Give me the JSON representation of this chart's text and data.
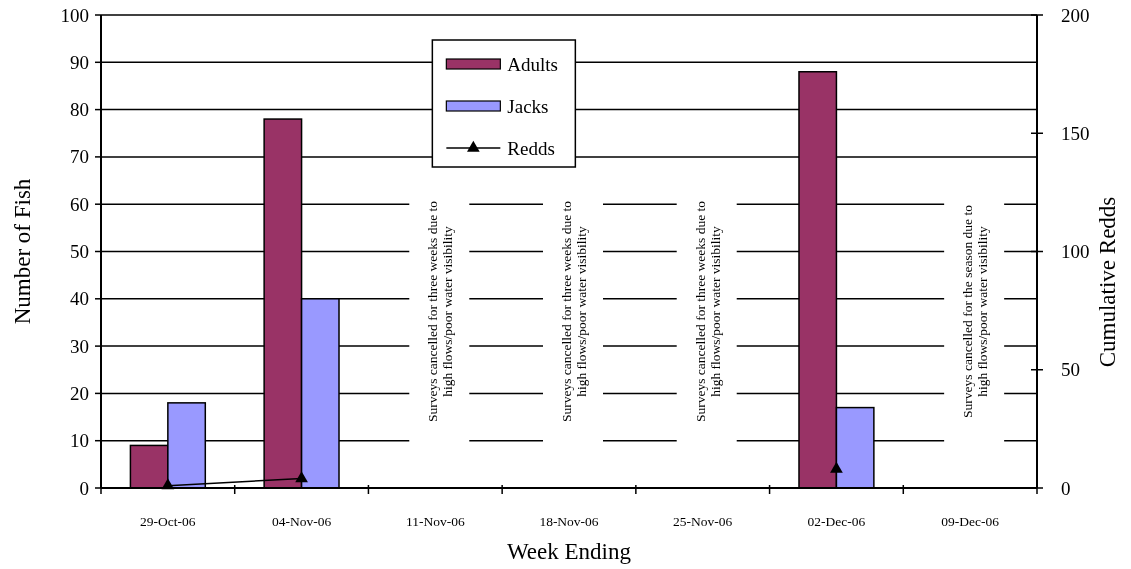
{
  "chart_data": {
    "type": "bar",
    "xlabel": "Week Ending",
    "ylabel": "Number of Fish",
    "y2label": "Cumulative Redds",
    "categories": [
      "29-Oct-06",
      "04-Nov-06",
      "11-Nov-06",
      "18-Nov-06",
      "25-Nov-06",
      "02-Dec-06",
      "09-Dec-06"
    ],
    "series": [
      {
        "name": "Adults",
        "color": "#993366",
        "values": [
          9,
          78,
          null,
          null,
          null,
          88,
          null
        ]
      },
      {
        "name": "Jacks",
        "color": "#9999ff",
        "values": [
          18,
          40,
          null,
          null,
          null,
          17,
          null
        ]
      },
      {
        "name": "Redds",
        "type": "line",
        "axis": "y2",
        "color": "#000000",
        "marker": "triangle",
        "values": [
          1,
          4,
          null,
          null,
          null,
          8,
          null
        ]
      }
    ],
    "ylim": [
      0,
      100
    ],
    "yticks": [
      0,
      10,
      20,
      30,
      40,
      50,
      60,
      70,
      80,
      90,
      100
    ],
    "y2lim": [
      0,
      200
    ],
    "y2ticks": [
      0,
      50,
      100,
      150,
      200
    ],
    "grid": "y",
    "legend": "top",
    "annotations": [
      "Surveys cancelled for three weeks due to\nhigh flows/poor water visibility",
      "Surveys cancelled for three weeks due to\nhigh flows/poor water visibility",
      "Surveys cancelled for three weeks due to\nhigh flows/poor water visibility",
      "Surveys cancelled for the season due to\nhigh flows/poor water visibility"
    ]
  }
}
